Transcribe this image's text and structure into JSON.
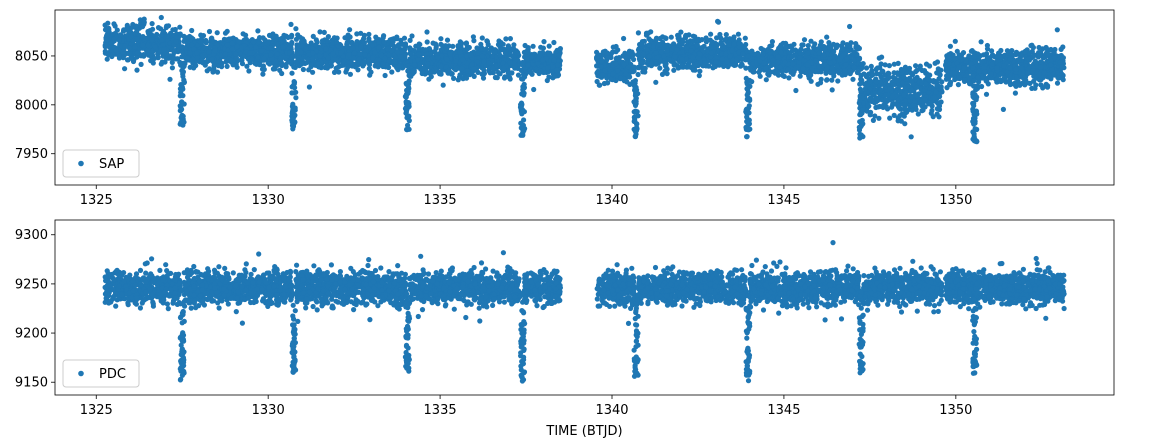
{
  "chart_data": [
    {
      "type": "scatter",
      "panel": "top",
      "legend": {
        "label": "SAP",
        "placement": "lower-left"
      },
      "xlim": [
        1323.8,
        1354.6
      ],
      "ylim": [
        7918,
        8097
      ],
      "xticks": [
        1325,
        1330,
        1335,
        1340,
        1345,
        1350
      ],
      "yticks": [
        7950,
        8000,
        8050
      ],
      "xlabel": "",
      "ylabel": "",
      "color": "#1f77b4",
      "segments": [
        {
          "x_start": 1325.25,
          "x_end": 1327.45,
          "y_level": 8063,
          "y_spread": 20
        },
        {
          "x_start": 1327.55,
          "x_end": 1330.7,
          "y_level": 8055,
          "y_spread": 18
        },
        {
          "x_start": 1330.8,
          "x_end": 1334.0,
          "y_level": 8052,
          "y_spread": 18
        },
        {
          "x_start": 1334.1,
          "x_end": 1337.3,
          "y_level": 8046,
          "y_spread": 18
        },
        {
          "x_start": 1337.45,
          "x_end": 1338.5,
          "y_level": 8045,
          "y_spread": 17
        },
        {
          "x_start": 1339.55,
          "x_end": 1340.65,
          "y_level": 8038,
          "y_spread": 18
        },
        {
          "x_start": 1340.75,
          "x_end": 1343.9,
          "y_level": 8053,
          "y_spread": 18
        },
        {
          "x_start": 1344.0,
          "x_end": 1347.2,
          "y_level": 8045,
          "y_spread": 18
        },
        {
          "x_start": 1347.3,
          "x_end": 1349.6,
          "y_level": 8015,
          "y_spread": 28
        },
        {
          "x_start": 1349.7,
          "x_end": 1353.15,
          "y_level": 8038,
          "y_spread": 20
        }
      ],
      "dips": [
        {
          "x": 1327.5,
          "y_min": 7978
        },
        {
          "x": 1330.75,
          "y_min": 7976
        },
        {
          "x": 1334.05,
          "y_min": 7975
        },
        {
          "x": 1337.4,
          "y_min": 7963
        },
        {
          "x": 1340.7,
          "y_min": 7966
        },
        {
          "x": 1343.95,
          "y_min": 7965
        },
        {
          "x": 1347.25,
          "y_min": 7965
        },
        {
          "x": 1350.55,
          "y_min": 7960
        }
      ],
      "gap": [
        1338.5,
        1339.55
      ]
    },
    {
      "type": "scatter",
      "panel": "bottom",
      "legend": {
        "label": "PDC",
        "placement": "lower-left"
      },
      "xlim": [
        1323.8,
        1354.6
      ],
      "ylim": [
        9137,
        9315
      ],
      "xticks": [
        1325,
        1330,
        1335,
        1340,
        1345,
        1350
      ],
      "yticks": [
        9150,
        9200,
        9250,
        9300
      ],
      "xlabel": "TIME (BTJD)",
      "ylabel": "",
      "color": "#1f77b4",
      "segments": [
        {
          "x_start": 1325.25,
          "x_end": 1327.45,
          "y_level": 9246,
          "y_spread": 18
        },
        {
          "x_start": 1327.55,
          "x_end": 1330.7,
          "y_level": 9246,
          "y_spread": 18
        },
        {
          "x_start": 1330.8,
          "x_end": 1334.0,
          "y_level": 9246,
          "y_spread": 18
        },
        {
          "x_start": 1334.1,
          "x_end": 1337.3,
          "y_level": 9246,
          "y_spread": 18
        },
        {
          "x_start": 1337.45,
          "x_end": 1338.5,
          "y_level": 9246,
          "y_spread": 18
        },
        {
          "x_start": 1339.55,
          "x_end": 1340.65,
          "y_level": 9246,
          "y_spread": 18
        },
        {
          "x_start": 1340.75,
          "x_end": 1343.9,
          "y_level": 9246,
          "y_spread": 18
        },
        {
          "x_start": 1344.0,
          "x_end": 1347.2,
          "y_level": 9246,
          "y_spread": 18
        },
        {
          "x_start": 1347.3,
          "x_end": 1349.6,
          "y_level": 9246,
          "y_spread": 18
        },
        {
          "x_start": 1349.7,
          "x_end": 1353.15,
          "y_level": 9246,
          "y_spread": 18
        }
      ],
      "dips": [
        {
          "x": 1327.5,
          "y_min": 9153
        },
        {
          "x": 1330.75,
          "y_min": 9160
        },
        {
          "x": 1334.05,
          "y_min": 9163
        },
        {
          "x": 1337.4,
          "y_min": 9148
        },
        {
          "x": 1340.7,
          "y_min": 9155
        },
        {
          "x": 1343.95,
          "y_min": 9153
        },
        {
          "x": 1347.25,
          "y_min": 9160
        },
        {
          "x": 1350.55,
          "y_min": 9156
        }
      ],
      "gap": [
        1338.5,
        1339.55
      ]
    }
  ]
}
